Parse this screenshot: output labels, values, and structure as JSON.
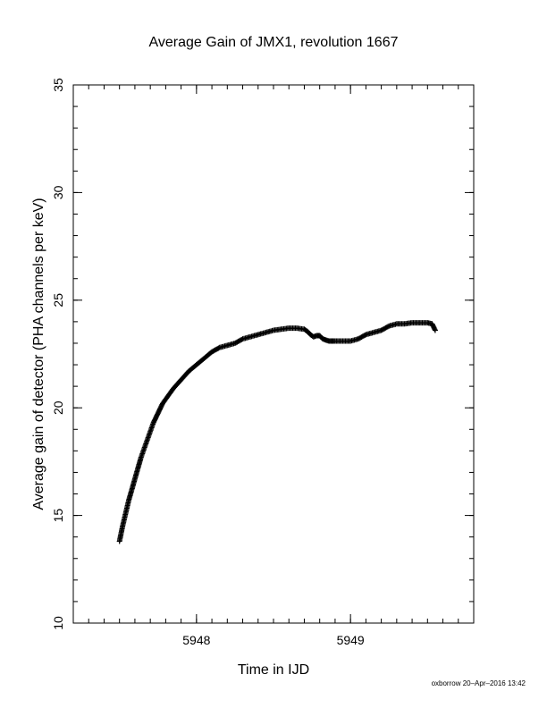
{
  "chart_data": {
    "type": "scatter",
    "title": "Average Gain of JMX1, revolution 1667",
    "xlabel": "Time in IJD",
    "ylabel": "Average gain of detector (PHA channels per keV)",
    "xlim": [
      5947.2,
      5949.8
    ],
    "ylim": [
      10,
      35
    ],
    "xticks_major": [
      5948,
      5949
    ],
    "xticks_major_labels": [
      "5948",
      "5949"
    ],
    "xtick_minor_step": 0.1,
    "yticks_major": [
      10,
      15,
      20,
      25,
      30,
      35
    ],
    "yticks_major_labels": [
      "10",
      "15",
      "20",
      "25",
      "30",
      "35"
    ],
    "ytick_minor_step": 1,
    "grid": false,
    "legend": "none",
    "marker": "plus",
    "color": "#000000",
    "series": [
      {
        "x": [
          5947.5,
          5947.52,
          5947.54,
          5947.56,
          5947.58,
          5947.6,
          5947.62,
          5947.64,
          5947.66,
          5947.68,
          5947.7,
          5947.72,
          5947.74,
          5947.76,
          5947.78,
          5947.8,
          5947.85,
          5947.9,
          5947.95,
          5948.0,
          5948.05,
          5948.1,
          5948.15,
          5948.2,
          5948.25,
          5948.3,
          5948.35,
          5948.4,
          5948.45,
          5948.5,
          5948.55,
          5948.6,
          5948.65,
          5948.7,
          5948.72,
          5948.74,
          5948.76,
          5948.78,
          5948.8,
          5948.82,
          5948.84,
          5948.86,
          5948.88,
          5948.9,
          5948.95,
          5949.0,
          5949.05,
          5949.1,
          5949.15,
          5949.2,
          5949.25,
          5949.3,
          5949.35,
          5949.4,
          5949.45,
          5949.5,
          5949.53,
          5949.55
        ],
        "y": [
          13.8,
          14.5,
          15.1,
          15.7,
          16.2,
          16.7,
          17.2,
          17.7,
          18.1,
          18.5,
          18.9,
          19.3,
          19.6,
          19.9,
          20.2,
          20.4,
          20.9,
          21.3,
          21.7,
          22.0,
          22.3,
          22.6,
          22.8,
          22.9,
          23.0,
          23.2,
          23.3,
          23.4,
          23.5,
          23.6,
          23.65,
          23.7,
          23.7,
          23.65,
          23.55,
          23.4,
          23.3,
          23.35,
          23.35,
          23.2,
          23.15,
          23.1,
          23.1,
          23.1,
          23.1,
          23.1,
          23.2,
          23.4,
          23.5,
          23.6,
          23.8,
          23.9,
          23.9,
          23.95,
          23.95,
          23.95,
          23.9,
          23.6
        ]
      }
    ]
  },
  "footer": {
    "stamp": "oxborrow 20–Apr–2016 13:42"
  }
}
